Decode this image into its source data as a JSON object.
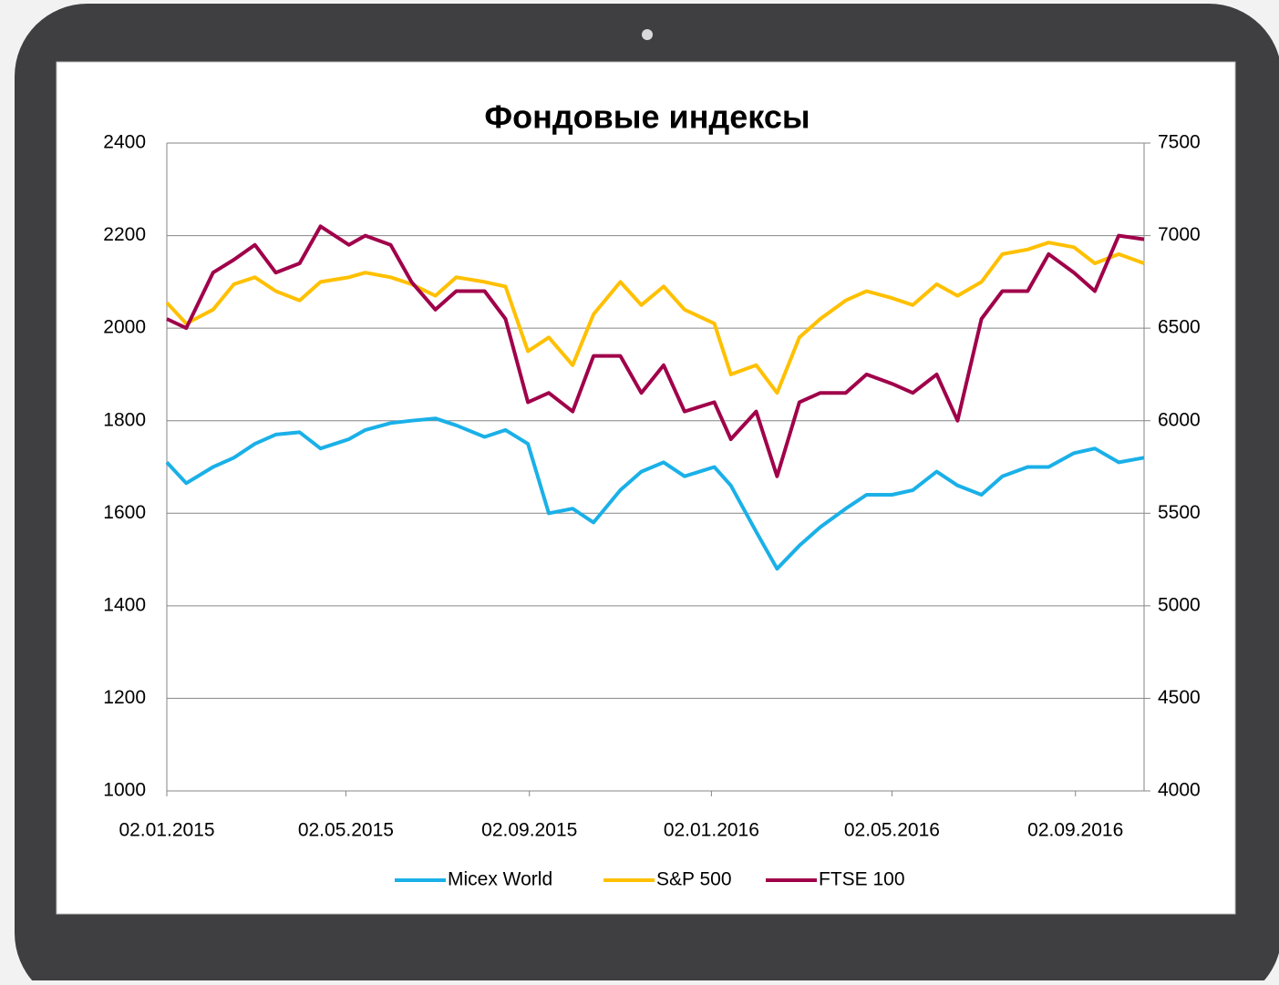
{
  "chart_data": {
    "type": "line",
    "title": "Фондовые индексы",
    "x": [
      "02.01.2015",
      "15.01.2015",
      "02.02.2015",
      "16.02.2015",
      "02.03.2015",
      "16.03.2015",
      "01.04.2015",
      "15.04.2015",
      "04.05.2015",
      "15.05.2015",
      "01.06.2015",
      "15.06.2015",
      "01.07.2015",
      "15.07.2015",
      "03.08.2015",
      "17.08.2015",
      "01.09.2015",
      "15.09.2015",
      "01.10.2015",
      "15.10.2015",
      "02.11.2015",
      "16.11.2015",
      "01.12.2015",
      "15.12.2015",
      "04.01.2016",
      "15.01.2016",
      "01.02.2016",
      "15.02.2016",
      "01.03.2016",
      "15.03.2016",
      "01.04.2016",
      "15.04.2016",
      "02.05.2016",
      "16.05.2016",
      "01.06.2016",
      "15.06.2016",
      "01.07.2016",
      "15.07.2016",
      "01.08.2016",
      "15.08.2016",
      "01.09.2016",
      "15.09.2016",
      "01.10.2016",
      "18.10.2016"
    ],
    "series": [
      {
        "name": "Micex World",
        "color": "#1ab0e8",
        "values": [
          1710,
          1665,
          1700,
          1720,
          1750,
          1770,
          1775,
          1740,
          1760,
          1780,
          1795,
          1800,
          1805,
          1790,
          1765,
          1780,
          1750,
          1600,
          1610,
          1580,
          1650,
          1690,
          1710,
          1680,
          1700,
          1660,
          1560,
          1480,
          1530,
          1570,
          1610,
          1640,
          1640,
          1650,
          1690,
          1660,
          1640,
          1680,
          1700,
          1700,
          1730,
          1740,
          1710,
          1720
        ]
      },
      {
        "name": "S&P 500",
        "color": "#ffc000",
        "values": [
          2055,
          2010,
          2040,
          2095,
          2110,
          2080,
          2060,
          2100,
          2110,
          2120,
          2110,
          2095,
          2070,
          2110,
          2100,
          2090,
          1950,
          1980,
          1920,
          2030,
          2100,
          2050,
          2090,
          2040,
          2010,
          1900,
          1920,
          1860,
          1980,
          2020,
          2060,
          2080,
          2065,
          2050,
          2095,
          2070,
          2100,
          2160,
          2170,
          2185,
          2175,
          2140,
          2160,
          2140
        ]
      },
      {
        "name": "FTSE 100",
        "color": "#a0004a",
        "axis": "y2",
        "values": [
          6550,
          6500,
          6800,
          6870,
          6950,
          6800,
          6850,
          7050,
          6950,
          7000,
          6950,
          6750,
          6600,
          6700,
          6700,
          6550,
          6100,
          6150,
          6050,
          6350,
          6350,
          6150,
          6300,
          6050,
          6100,
          5900,
          6050,
          5700,
          6100,
          6150,
          6150,
          6250,
          6200,
          6150,
          6250,
          6000,
          6550,
          6700,
          6700,
          6900,
          6800,
          6700,
          7000,
          6980
        ]
      }
    ],
    "xlim": [
      "02.01.2015",
      "18.10.2016"
    ],
    "xticks": [
      "02.01.2015",
      "02.05.2015",
      "02.09.2015",
      "02.01.2016",
      "02.05.2016",
      "02.09.2016"
    ],
    "ylim": [
      1000,
      2400
    ],
    "yticks": [
      1000,
      1200,
      1400,
      1600,
      1800,
      2000,
      2200,
      2400
    ],
    "y2lim": [
      4000,
      7500
    ],
    "y2ticks": [
      4000,
      4500,
      5000,
      5500,
      6000,
      6500,
      7000,
      7500
    ],
    "grid": true,
    "legend": "bottom"
  }
}
